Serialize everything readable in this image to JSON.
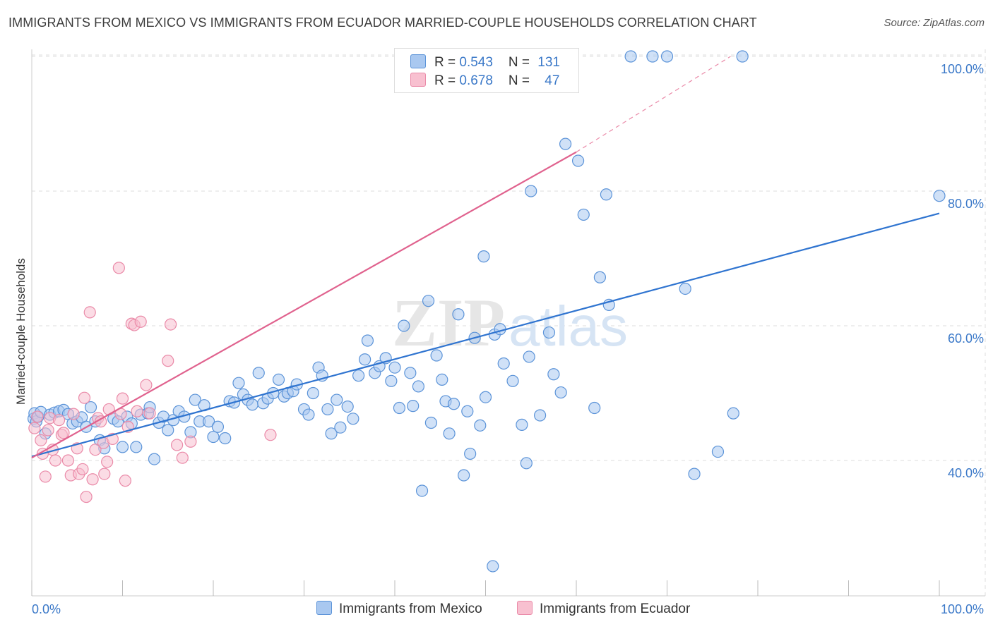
{
  "header": {
    "title": "IMMIGRANTS FROM MEXICO VS IMMIGRANTS FROM ECUADOR MARRIED-COUPLE HOUSEHOLDS CORRELATION CHART",
    "source": "Source: ZipAtlas.com"
  },
  "colors": {
    "mexico_fill": "#a9c8f0",
    "mexico_stroke": "#5b93d8",
    "mexico_line": "#2f74d0",
    "ecuador_fill": "#f8c0d0",
    "ecuador_stroke": "#ea8aa8",
    "ecuador_line": "#e0628e",
    "tick_text": "#3a78c8",
    "grid": "#dddddd"
  },
  "legend_top": {
    "rows": [
      {
        "r_label": "R = ",
        "r_value": "0.543",
        "n_label": "N = ",
        "n_value": "131"
      },
      {
        "r_label": "R = ",
        "r_value": "0.678",
        "n_label": "N = ",
        "n_value": "47"
      }
    ]
  },
  "chart_data": {
    "type": "scatter",
    "title": "IMMIGRANTS FROM MEXICO VS IMMIGRANTS FROM ECUADOR MARRIED-COUPLE HOUSEHOLDS CORRELATION CHART",
    "xlabel": "",
    "ylabel": "Married-couple Households",
    "xlim": [
      0,
      100
    ],
    "ylim": [
      20,
      101
    ],
    "x_tick_labels": [
      "0.0%",
      "100.0%"
    ],
    "y_ticks": [
      40,
      60,
      80,
      100
    ],
    "y_tick_labels": [
      "40.0%",
      "60.0%",
      "80.0%",
      "100.0%"
    ],
    "grid": true,
    "watermark": "ZIPatlas",
    "legend_position": "bottom-center",
    "series": [
      {
        "name": "Immigrants from Mexico",
        "R": 0.543,
        "N": 131,
        "trend": {
          "x0": 0,
          "y0": 40.6,
          "x1": 100,
          "y1": 76.7
        },
        "points": [
          [
            0.2,
            46.2
          ],
          [
            0.3,
            47.0
          ],
          [
            0.5,
            45.8
          ],
          [
            0.7,
            46.5
          ],
          [
            1.0,
            47.2
          ],
          [
            1.5,
            44.0
          ],
          [
            2.0,
            46.8
          ],
          [
            2.5,
            47.1
          ],
          [
            3.0,
            47.3
          ],
          [
            3.5,
            47.5
          ],
          [
            4.0,
            46.9
          ],
          [
            4.5,
            45.5
          ],
          [
            5.0,
            45.8
          ],
          [
            5.5,
            46.4
          ],
          [
            6.0,
            45.0
          ],
          [
            6.5,
            47.9
          ],
          [
            7.0,
            45.8
          ],
          [
            7.5,
            43.0
          ],
          [
            8.0,
            41.8
          ],
          [
            9.0,
            46.2
          ],
          [
            9.5,
            45.8
          ],
          [
            10.0,
            42.0
          ],
          [
            10.5,
            46.5
          ],
          [
            11.0,
            45.5
          ],
          [
            11.5,
            42.0
          ],
          [
            12.0,
            46.8
          ],
          [
            12.8,
            47.0
          ],
          [
            13.0,
            47.9
          ],
          [
            13.5,
            40.2
          ],
          [
            14.0,
            45.6
          ],
          [
            14.5,
            46.5
          ],
          [
            15.0,
            44.5
          ],
          [
            15.6,
            46.0
          ],
          [
            16.2,
            47.3
          ],
          [
            16.8,
            46.5
          ],
          [
            17.5,
            44.2
          ],
          [
            18.0,
            49.0
          ],
          [
            18.5,
            45.8
          ],
          [
            19.0,
            48.2
          ],
          [
            19.5,
            45.8
          ],
          [
            20.0,
            43.5
          ],
          [
            20.5,
            45.0
          ],
          [
            21.3,
            43.3
          ],
          [
            21.8,
            48.8
          ],
          [
            22.3,
            48.6
          ],
          [
            22.8,
            51.5
          ],
          [
            23.3,
            49.8
          ],
          [
            23.8,
            49.0
          ],
          [
            24.3,
            48.3
          ],
          [
            25.0,
            53.0
          ],
          [
            25.5,
            48.5
          ],
          [
            26.0,
            49.2
          ],
          [
            26.6,
            50.0
          ],
          [
            27.2,
            52.0
          ],
          [
            27.8,
            49.5
          ],
          [
            28.2,
            50.0
          ],
          [
            28.8,
            50.3
          ],
          [
            29.2,
            51.3
          ],
          [
            30.0,
            47.6
          ],
          [
            30.5,
            46.8
          ],
          [
            31.0,
            50.0
          ],
          [
            31.6,
            53.8
          ],
          [
            32.0,
            52.6
          ],
          [
            32.6,
            47.6
          ],
          [
            33.0,
            44.0
          ],
          [
            33.6,
            49.0
          ],
          [
            34.0,
            44.9
          ],
          [
            34.8,
            48.0
          ],
          [
            35.4,
            46.2
          ],
          [
            36.0,
            52.6
          ],
          [
            36.7,
            55.0
          ],
          [
            37.0,
            57.8
          ],
          [
            37.8,
            53.0
          ],
          [
            38.3,
            54.0
          ],
          [
            39.0,
            55.2
          ],
          [
            39.6,
            51.8
          ],
          [
            40.0,
            53.8
          ],
          [
            40.5,
            47.8
          ],
          [
            41.0,
            60.0
          ],
          [
            41.7,
            53.0
          ],
          [
            42.0,
            48.1
          ],
          [
            42.6,
            51.0
          ],
          [
            43.0,
            35.5
          ],
          [
            43.7,
            63.7
          ],
          [
            44.0,
            45.6
          ],
          [
            44.6,
            55.6
          ],
          [
            45.2,
            52.0
          ],
          [
            45.6,
            48.8
          ],
          [
            46.0,
            44.0
          ],
          [
            46.5,
            48.4
          ],
          [
            47.0,
            61.7
          ],
          [
            47.6,
            37.8
          ],
          [
            48.0,
            47.3
          ],
          [
            48.3,
            41.0
          ],
          [
            48.8,
            58.2
          ],
          [
            49.4,
            45.2
          ],
          [
            49.8,
            70.3
          ],
          [
            50.0,
            49.4
          ],
          [
            50.8,
            24.3
          ],
          [
            51.0,
            58.7
          ],
          [
            51.6,
            59.5
          ],
          [
            52.0,
            54.4
          ],
          [
            53.0,
            51.8
          ],
          [
            54.0,
            45.3
          ],
          [
            54.5,
            39.6
          ],
          [
            54.8,
            55.4
          ],
          [
            55.0,
            80.0
          ],
          [
            56.0,
            46.7
          ],
          [
            57.0,
            59.0
          ],
          [
            57.5,
            52.8
          ],
          [
            58.3,
            50.1
          ],
          [
            58.8,
            87.0
          ],
          [
            60.2,
            84.5
          ],
          [
            60.8,
            76.5
          ],
          [
            62.0,
            47.8
          ],
          [
            62.6,
            67.2
          ],
          [
            63.3,
            79.5
          ],
          [
            63.6,
            63.1
          ],
          [
            66.0,
            100.0
          ],
          [
            68.4,
            100.0
          ],
          [
            70.0,
            100.0
          ],
          [
            72.0,
            65.5
          ],
          [
            73.0,
            38.0
          ],
          [
            75.6,
            41.3
          ],
          [
            77.3,
            47.0
          ],
          [
            78.3,
            100.0
          ],
          [
            100.0,
            79.3
          ]
        ]
      },
      {
        "name": "Immigrants from Ecuador",
        "R": 0.678,
        "N": 47,
        "trend": {
          "x0": 0,
          "y0": 40.4,
          "x1": 60,
          "y1": 85.8
        },
        "trend_extension": {
          "x0": 60,
          "y0": 85.8,
          "x1": 77,
          "y1": 100
        },
        "points": [
          [
            0.3,
            44.8
          ],
          [
            0.6,
            46.5
          ],
          [
            1.0,
            43.0
          ],
          [
            1.2,
            41.0
          ],
          [
            1.5,
            37.6
          ],
          [
            1.8,
            44.5
          ],
          [
            2.0,
            46.3
          ],
          [
            2.3,
            41.6
          ],
          [
            2.6,
            40.0
          ],
          [
            3.0,
            46.0
          ],
          [
            3.3,
            43.8
          ],
          [
            3.5,
            44.1
          ],
          [
            4.0,
            40.0
          ],
          [
            4.3,
            37.8
          ],
          [
            4.6,
            46.9
          ],
          [
            5.0,
            41.8
          ],
          [
            5.2,
            38.0
          ],
          [
            5.6,
            38.7
          ],
          [
            5.8,
            49.3
          ],
          [
            6.0,
            34.6
          ],
          [
            6.4,
            62.0
          ],
          [
            6.7,
            37.2
          ],
          [
            7.0,
            41.6
          ],
          [
            7.3,
            46.3
          ],
          [
            7.6,
            45.8
          ],
          [
            7.9,
            42.6
          ],
          [
            8.0,
            38.0
          ],
          [
            8.3,
            39.8
          ],
          [
            8.5,
            47.6
          ],
          [
            8.9,
            43.2
          ],
          [
            9.6,
            68.6
          ],
          [
            9.8,
            46.9
          ],
          [
            10.0,
            49.2
          ],
          [
            10.3,
            37.0
          ],
          [
            10.6,
            45.0
          ],
          [
            11.0,
            60.3
          ],
          [
            11.3,
            60.1
          ],
          [
            11.6,
            47.3
          ],
          [
            12.0,
            60.6
          ],
          [
            12.6,
            51.2
          ],
          [
            13.0,
            47.0
          ],
          [
            15.0,
            54.8
          ],
          [
            15.3,
            60.2
          ],
          [
            16.0,
            42.3
          ],
          [
            16.6,
            40.4
          ],
          [
            17.5,
            42.8
          ],
          [
            26.3,
            43.8
          ]
        ]
      }
    ]
  },
  "legend_bottom": {
    "items": [
      {
        "label": "Immigrants from Mexico"
      },
      {
        "label": "Immigrants from Ecuador"
      }
    ]
  }
}
